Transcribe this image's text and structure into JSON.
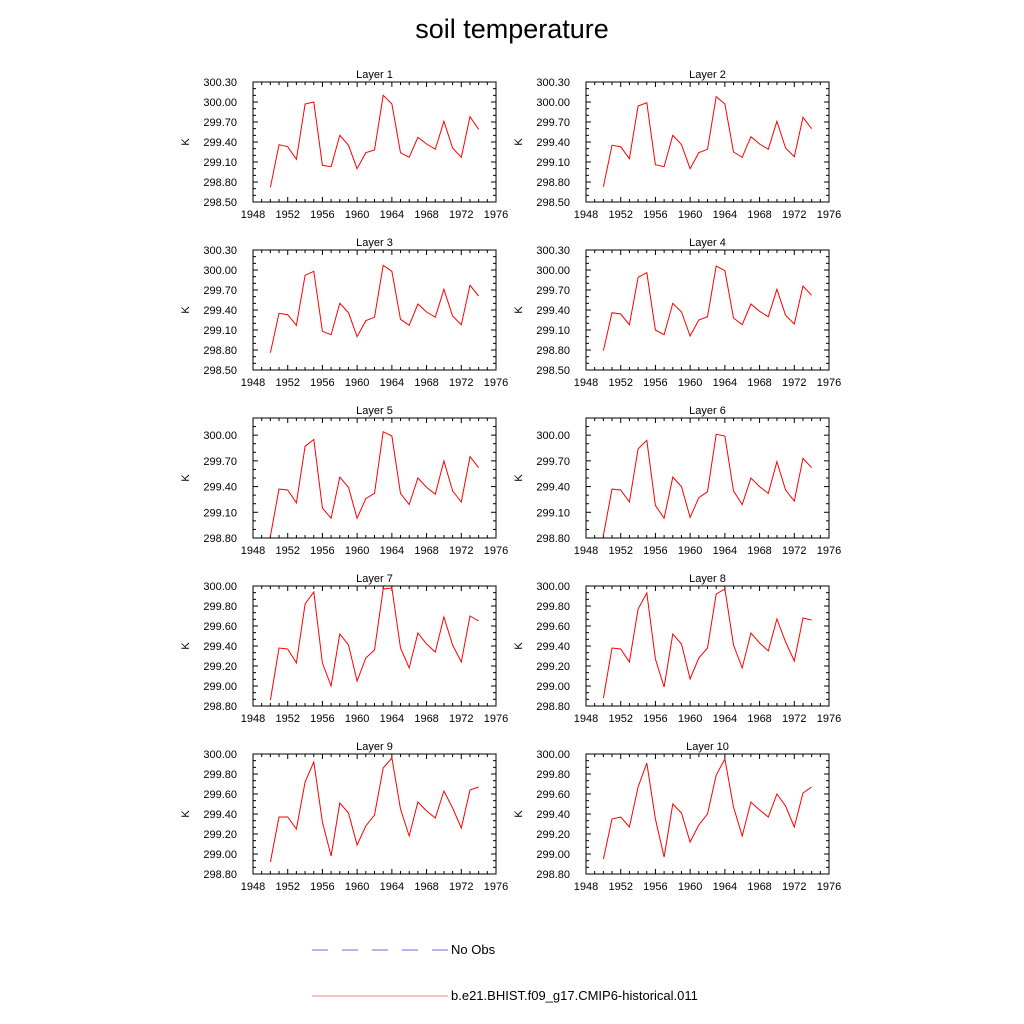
{
  "title": "soil temperature",
  "ylabel": "K",
  "legend": {
    "entries": [
      {
        "label": "No Obs",
        "color": "#6a6adf",
        "style": "dashed"
      },
      {
        "label": "b.e21.BHIST.f09_g17.CMIP6-historical.011",
        "color": "#f08080",
        "style": "solid"
      }
    ]
  },
  "chart_data": [
    {
      "type": "line",
      "title": "Layer 1",
      "ylabel": "K",
      "ylim": [
        298.5,
        300.3
      ],
      "yticks": [
        "298.50",
        "298.80",
        "299.10",
        "299.40",
        "299.70",
        "300.00",
        "300.30"
      ],
      "xlim": [
        1948,
        1976
      ],
      "xticks": [
        "1948",
        "1952",
        "1956",
        "1960",
        "1964",
        "1968",
        "1972",
        "1976"
      ],
      "series": [
        {
          "color": "#ff0000",
          "x": [
            1950,
            1951,
            1952,
            1953,
            1954,
            1955,
            1956,
            1957,
            1958,
            1959,
            1960,
            1961,
            1962,
            1963,
            1964,
            1965,
            1966,
            1967,
            1968,
            1969,
            1970,
            1971,
            1972,
            1973,
            1974
          ],
          "values": [
            298.72,
            299.36,
            299.33,
            299.14,
            299.97,
            300.0,
            299.05,
            299.03,
            299.5,
            299.35,
            299.0,
            299.24,
            299.28,
            300.1,
            299.97,
            299.24,
            299.17,
            299.47,
            299.37,
            299.29,
            299.71,
            299.31,
            299.17,
            299.78,
            299.59
          ]
        }
      ]
    },
    {
      "type": "line",
      "title": "Layer 2",
      "ylabel": "K",
      "ylim": [
        298.5,
        300.3
      ],
      "yticks": [
        "298.50",
        "298.80",
        "299.10",
        "299.40",
        "299.70",
        "300.00",
        "300.30"
      ],
      "xlim": [
        1948,
        1976
      ],
      "xticks": [
        "1948",
        "1952",
        "1956",
        "1960",
        "1964",
        "1968",
        "1972",
        "1976"
      ],
      "series": [
        {
          "color": "#ff0000",
          "x": [
            1950,
            1951,
            1952,
            1953,
            1954,
            1955,
            1956,
            1957,
            1958,
            1959,
            1960,
            1961,
            1962,
            1963,
            1964,
            1965,
            1966,
            1967,
            1968,
            1969,
            1970,
            1971,
            1972,
            1973,
            1974
          ],
          "values": [
            298.73,
            299.35,
            299.33,
            299.15,
            299.94,
            299.99,
            299.06,
            299.03,
            299.5,
            299.36,
            299.0,
            299.24,
            299.29,
            300.08,
            299.97,
            299.25,
            299.17,
            299.48,
            299.37,
            299.29,
            299.71,
            299.31,
            299.18,
            299.77,
            299.6
          ]
        }
      ]
    },
    {
      "type": "line",
      "title": "Layer 3",
      "ylabel": "K",
      "ylim": [
        298.5,
        300.3
      ],
      "yticks": [
        "298.50",
        "298.80",
        "299.10",
        "299.40",
        "299.70",
        "300.00",
        "300.30"
      ],
      "xlim": [
        1948,
        1976
      ],
      "xticks": [
        "1948",
        "1952",
        "1956",
        "1960",
        "1964",
        "1968",
        "1972",
        "1976"
      ],
      "series": [
        {
          "color": "#ff0000",
          "x": [
            1950,
            1951,
            1952,
            1953,
            1954,
            1955,
            1956,
            1957,
            1958,
            1959,
            1960,
            1961,
            1962,
            1963,
            1964,
            1965,
            1966,
            1967,
            1968,
            1969,
            1970,
            1971,
            1972,
            1973,
            1974
          ],
          "values": [
            298.76,
            299.35,
            299.33,
            299.17,
            299.92,
            299.98,
            299.08,
            299.03,
            299.5,
            299.36,
            299.0,
            299.24,
            299.29,
            300.07,
            299.98,
            299.26,
            299.17,
            299.49,
            299.37,
            299.29,
            299.71,
            299.31,
            299.18,
            299.77,
            299.61
          ]
        }
      ]
    },
    {
      "type": "line",
      "title": "Layer 4",
      "ylabel": "K",
      "ylim": [
        298.5,
        300.3
      ],
      "yticks": [
        "298.50",
        "298.80",
        "299.10",
        "299.40",
        "299.70",
        "300.00",
        "300.30"
      ],
      "xlim": [
        1948,
        1976
      ],
      "xticks": [
        "1948",
        "1952",
        "1956",
        "1960",
        "1964",
        "1968",
        "1972",
        "1976"
      ],
      "series": [
        {
          "color": "#ff0000",
          "x": [
            1950,
            1951,
            1952,
            1953,
            1954,
            1955,
            1956,
            1957,
            1958,
            1959,
            1960,
            1961,
            1962,
            1963,
            1964,
            1965,
            1966,
            1967,
            1968,
            1969,
            1970,
            1971,
            1972,
            1973,
            1974
          ],
          "values": [
            298.79,
            299.36,
            299.34,
            299.18,
            299.89,
            299.96,
            299.1,
            299.03,
            299.5,
            299.37,
            299.01,
            299.25,
            299.3,
            300.06,
            299.99,
            299.28,
            299.18,
            299.49,
            299.38,
            299.3,
            299.71,
            299.32,
            299.19,
            299.76,
            299.62
          ]
        }
      ]
    },
    {
      "type": "line",
      "title": "Layer 5",
      "ylabel": "K",
      "ylim": [
        298.8,
        300.2
      ],
      "yticks": [
        "298.80",
        "299.10",
        "299.40",
        "299.70",
        "300.00"
      ],
      "xlim": [
        1948,
        1976
      ],
      "xticks": [
        "1948",
        "1952",
        "1956",
        "1960",
        "1964",
        "1968",
        "1972",
        "1976"
      ],
      "series": [
        {
          "color": "#ff0000",
          "x": [
            1950,
            1951,
            1952,
            1953,
            1954,
            1955,
            1956,
            1957,
            1958,
            1959,
            1960,
            1961,
            1962,
            1963,
            1964,
            1965,
            1966,
            1967,
            1968,
            1969,
            1970,
            1971,
            1972,
            1973,
            1974
          ],
          "values": [
            298.82,
            299.37,
            299.36,
            299.21,
            299.87,
            299.95,
            299.15,
            299.03,
            299.51,
            299.39,
            299.03,
            299.26,
            299.32,
            300.04,
            299.99,
            299.32,
            299.19,
            299.5,
            299.39,
            299.31,
            299.7,
            299.35,
            299.22,
            299.75,
            299.62
          ]
        }
      ]
    },
    {
      "type": "line",
      "title": "Layer 6",
      "ylabel": "K",
      "ylim": [
        298.8,
        300.2
      ],
      "yticks": [
        "298.80",
        "299.10",
        "299.40",
        "299.70",
        "300.00"
      ],
      "xlim": [
        1948,
        1976
      ],
      "xticks": [
        "1948",
        "1952",
        "1956",
        "1960",
        "1964",
        "1968",
        "1972",
        "1976"
      ],
      "series": [
        {
          "color": "#ff0000",
          "x": [
            1950,
            1951,
            1952,
            1953,
            1954,
            1955,
            1956,
            1957,
            1958,
            1959,
            1960,
            1961,
            1962,
            1963,
            1964,
            1965,
            1966,
            1967,
            1968,
            1969,
            1970,
            1971,
            1972,
            1973,
            1974
          ],
          "values": [
            298.83,
            299.37,
            299.36,
            299.22,
            299.84,
            299.94,
            299.18,
            299.03,
            299.51,
            299.4,
            299.04,
            299.27,
            299.34,
            300.01,
            299.99,
            299.35,
            299.19,
            299.5,
            299.4,
            299.32,
            299.69,
            299.36,
            299.23,
            299.73,
            299.62
          ]
        }
      ]
    },
    {
      "type": "line",
      "title": "Layer 7",
      "ylabel": "K",
      "ylim": [
        298.8,
        300.0
      ],
      "yticks": [
        "298.80",
        "299.00",
        "299.20",
        "299.40",
        "299.60",
        "299.80",
        "300.00"
      ],
      "xlim": [
        1948,
        1976
      ],
      "xticks": [
        "1948",
        "1952",
        "1956",
        "1960",
        "1964",
        "1968",
        "1972",
        "1976"
      ],
      "series": [
        {
          "color": "#ff0000",
          "x": [
            1950,
            1951,
            1952,
            1953,
            1954,
            1955,
            1956,
            1957,
            1958,
            1959,
            1960,
            1961,
            1962,
            1963,
            1964,
            1965,
            1966,
            1967,
            1968,
            1969,
            1970,
            1971,
            1972,
            1973,
            1974
          ],
          "values": [
            298.86,
            299.38,
            299.37,
            299.23,
            299.82,
            299.94,
            299.23,
            299.0,
            299.52,
            299.41,
            299.05,
            299.28,
            299.36,
            299.97,
            299.98,
            299.38,
            299.18,
            299.53,
            299.42,
            299.34,
            299.69,
            299.41,
            299.24,
            299.7,
            299.65
          ]
        }
      ]
    },
    {
      "type": "line",
      "title": "Layer 8",
      "ylabel": "K",
      "ylim": [
        298.8,
        300.0
      ],
      "yticks": [
        "298.80",
        "299.00",
        "299.20",
        "299.40",
        "299.60",
        "299.80",
        "300.00"
      ],
      "xlim": [
        1948,
        1976
      ],
      "xticks": [
        "1948",
        "1952",
        "1956",
        "1960",
        "1964",
        "1968",
        "1972",
        "1976"
      ],
      "series": [
        {
          "color": "#ff0000",
          "x": [
            1950,
            1951,
            1952,
            1953,
            1954,
            1955,
            1956,
            1957,
            1958,
            1959,
            1960,
            1961,
            1962,
            1963,
            1964,
            1965,
            1966,
            1967,
            1968,
            1969,
            1970,
            1971,
            1972,
            1973,
            1974
          ],
          "values": [
            298.88,
            299.38,
            299.37,
            299.24,
            299.77,
            299.93,
            299.27,
            298.99,
            299.52,
            299.42,
            299.07,
            299.28,
            299.38,
            299.92,
            299.97,
            299.41,
            299.18,
            299.53,
            299.43,
            299.35,
            299.67,
            299.44,
            299.25,
            299.68,
            299.66
          ]
        }
      ]
    },
    {
      "type": "line",
      "title": "Layer 9",
      "ylabel": "K",
      "ylim": [
        298.8,
        300.0
      ],
      "yticks": [
        "298.80",
        "299.00",
        "299.20",
        "299.40",
        "299.60",
        "299.80",
        "300.00"
      ],
      "xlim": [
        1948,
        1976
      ],
      "xticks": [
        "1948",
        "1952",
        "1956",
        "1960",
        "1964",
        "1968",
        "1972",
        "1976"
      ],
      "series": [
        {
          "color": "#ff0000",
          "x": [
            1950,
            1951,
            1952,
            1953,
            1954,
            1955,
            1956,
            1957,
            1958,
            1959,
            1960,
            1961,
            1962,
            1963,
            1964,
            1965,
            1966,
            1967,
            1968,
            1969,
            1970,
            1971,
            1972,
            1973,
            1974
          ],
          "values": [
            298.92,
            299.37,
            299.37,
            299.25,
            299.72,
            299.92,
            299.32,
            298.98,
            299.51,
            299.41,
            299.09,
            299.28,
            299.39,
            299.86,
            299.96,
            299.45,
            299.18,
            299.52,
            299.43,
            299.36,
            299.63,
            299.46,
            299.26,
            299.64,
            299.67
          ]
        }
      ]
    },
    {
      "type": "line",
      "title": "Layer 10",
      "ylabel": "K",
      "ylim": [
        298.8,
        300.0
      ],
      "yticks": [
        "298.80",
        "299.00",
        "299.20",
        "299.40",
        "299.60",
        "299.80",
        "300.00"
      ],
      "xlim": [
        1948,
        1976
      ],
      "xticks": [
        "1948",
        "1952",
        "1956",
        "1960",
        "1964",
        "1968",
        "1972",
        "1976"
      ],
      "series": [
        {
          "color": "#ff0000",
          "x": [
            1950,
            1951,
            1952,
            1953,
            1954,
            1955,
            1956,
            1957,
            1958,
            1959,
            1960,
            1961,
            1962,
            1963,
            1964,
            1965,
            1966,
            1967,
            1968,
            1969,
            1970,
            1971,
            1972,
            1973,
            1974
          ],
          "values": [
            298.95,
            299.35,
            299.37,
            299.27,
            299.67,
            299.91,
            299.35,
            298.97,
            299.5,
            299.41,
            299.12,
            299.29,
            299.4,
            299.79,
            299.95,
            299.47,
            299.18,
            299.52,
            299.44,
            299.37,
            299.6,
            299.48,
            299.27,
            299.61,
            299.67
          ]
        }
      ]
    }
  ]
}
